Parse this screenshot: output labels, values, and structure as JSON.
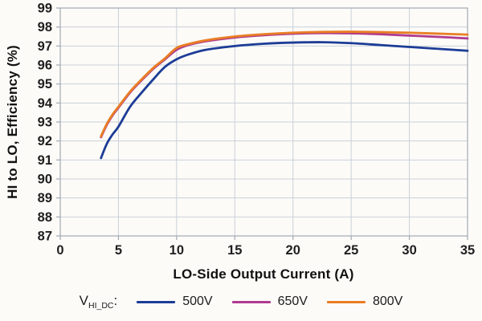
{
  "chart_data": {
    "type": "line",
    "title": "",
    "xlabel": "LO-Side Output Current (A)",
    "ylabel": "HI to LO, Efficiency (%)",
    "xlim": [
      0,
      35
    ],
    "ylim": [
      87,
      99
    ],
    "x_ticks": [
      0,
      5,
      10,
      15,
      20,
      25,
      30,
      35
    ],
    "y_ticks": [
      87,
      88,
      89,
      90,
      91,
      92,
      93,
      94,
      95,
      96,
      97,
      98,
      99
    ],
    "grid": true,
    "legend_position": "bottom",
    "legend_prefix": {
      "base": "V",
      "sub": "HI_DC",
      "colon": ":"
    },
    "series": [
      {
        "name": "500V",
        "color": "#1C3C96",
        "x": [
          3.5,
          4,
          4.5,
          5,
          6,
          7,
          8,
          9,
          10,
          11,
          12.5,
          15,
          17.5,
          20,
          22.5,
          25,
          27.5,
          30,
          32.5,
          35
        ],
        "y": [
          91.1,
          91.85,
          92.35,
          92.75,
          93.8,
          94.55,
          95.25,
          95.9,
          96.3,
          96.55,
          96.8,
          97.0,
          97.12,
          97.18,
          97.2,
          97.15,
          97.05,
          96.95,
          96.85,
          96.75
        ]
      },
      {
        "name": "650V",
        "color": "#B03A8F",
        "x": [
          3.5,
          4,
          4.5,
          5,
          6,
          7,
          8,
          9,
          10,
          11,
          12.5,
          15,
          17.5,
          20,
          22.5,
          25,
          27.5,
          30,
          32.5,
          35
        ],
        "y": [
          92.2,
          92.85,
          93.35,
          93.75,
          94.55,
          95.2,
          95.8,
          96.3,
          96.8,
          97.05,
          97.25,
          97.45,
          97.57,
          97.65,
          97.68,
          97.67,
          97.62,
          97.55,
          97.48,
          97.4
        ]
      },
      {
        "name": "800V",
        "color": "#E97E24",
        "x": [
          3.5,
          4,
          4.5,
          5,
          6,
          7,
          8,
          9,
          10,
          11,
          12.5,
          15,
          17.5,
          20,
          22.5,
          25,
          27.5,
          30,
          32.5,
          35
        ],
        "y": [
          92.25,
          92.9,
          93.4,
          93.8,
          94.6,
          95.25,
          95.85,
          96.35,
          96.9,
          97.1,
          97.3,
          97.5,
          97.62,
          97.7,
          97.74,
          97.75,
          97.73,
          97.7,
          97.65,
          97.6
        ]
      }
    ]
  },
  "style": {
    "grid_color": "#CAD0D8",
    "border_color": "#A3AAB3",
    "tick_color": "#A3AAB3",
    "tick_label_color": "#1f1f1f"
  }
}
